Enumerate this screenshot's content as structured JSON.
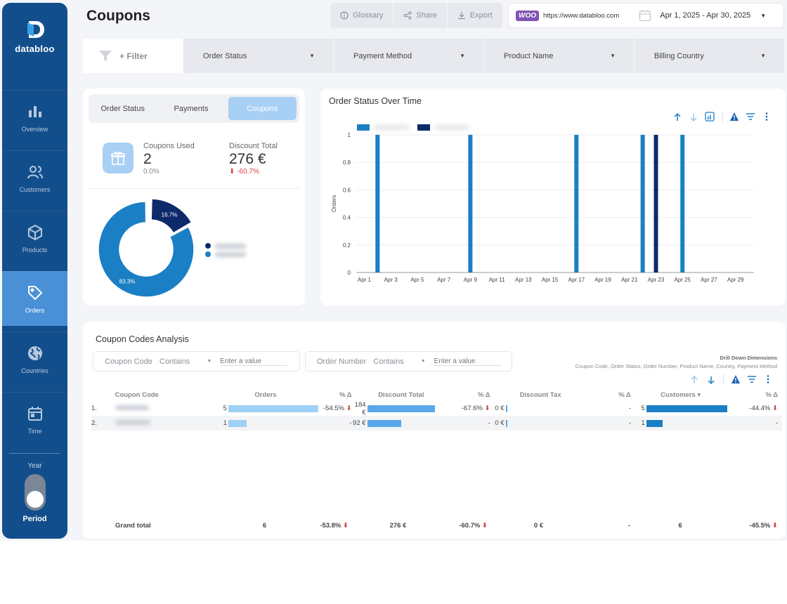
{
  "brand": {
    "name": "databloo"
  },
  "sidebar": {
    "items": [
      {
        "label": "Overview",
        "icon": "bar-chart-icon"
      },
      {
        "label": "Customers",
        "icon": "users-icon"
      },
      {
        "label": "Products",
        "icon": "box-icon"
      },
      {
        "label": "Orders",
        "icon": "tag-icon",
        "active": true
      },
      {
        "label": "Countries",
        "icon": "globe-icon"
      },
      {
        "label": "Time",
        "icon": "calendar-icon"
      }
    ],
    "toggle": {
      "top": "Year",
      "bottom": "Period"
    }
  },
  "header": {
    "title": "Coupons",
    "glossary": "Glossary",
    "share": "Share",
    "export": "Export",
    "woo_label": "WOO",
    "url": "https://www.databloo.com",
    "date_range": "Apr 1, 2025 - Apr 30, 2025"
  },
  "filters": {
    "add": "+ Filter",
    "controls": [
      "Order Status",
      "Payment Method",
      "Product Name",
      "Billing Country"
    ]
  },
  "summary": {
    "tabs": [
      "Order Status",
      "Payments",
      "Coupons"
    ],
    "active_tab": "Coupons",
    "coupons_used": {
      "label": "Coupons Used",
      "value": "2",
      "sub": "0.0%"
    },
    "discount_total": {
      "label": "Discount Total",
      "value": "276 €",
      "change": "-60.7%"
    },
    "donut": {
      "slices": [
        {
          "value": 16.7,
          "label": "16.7%",
          "color": "#0d2a6b"
        },
        {
          "value": 83.3,
          "label": "83.3%",
          "color": "#1a7fc4"
        }
      ]
    }
  },
  "chart_data": {
    "type": "bar",
    "title": "Order Status Over Time",
    "ylabel": "Orders",
    "ylim": [
      0,
      1
    ],
    "yticks": [
      "0",
      "0.2",
      "0.4",
      "0.6",
      "0.8",
      "1"
    ],
    "xticks": [
      "Apr 1",
      "Apr 3",
      "Apr 5",
      "Apr 7",
      "Apr 9",
      "Apr 11",
      "Apr 13",
      "Apr 15",
      "Apr 17",
      "Apr 19",
      "Apr 21",
      "Apr 23",
      "Apr 25",
      "Apr 27",
      "Apr 29"
    ],
    "series": [
      {
        "color": "#1a7fc4",
        "points": [
          {
            "x": "Apr 2",
            "y": 1
          },
          {
            "x": "Apr 9",
            "y": 1
          },
          {
            "x": "Apr 17",
            "y": 1
          },
          {
            "x": "Apr 22",
            "y": 1
          },
          {
            "x": "Apr 25",
            "y": 1
          }
        ]
      },
      {
        "color": "#0d2a6b",
        "points": [
          {
            "x": "Apr 23",
            "y": 1
          }
        ]
      }
    ]
  },
  "table": {
    "title": "Coupon Codes Analysis",
    "search1": {
      "label": "Coupon Code",
      "mode": "Contains",
      "placeholder": "Enter a value"
    },
    "search2": {
      "label": "Order Number",
      "mode": "Contains",
      "placeholder": "Enter a value"
    },
    "drill": {
      "title": "Drill Down Dimensions",
      "items": "Coupon Code, Order Status, Order Number, Product Name, Country, Payment Method"
    },
    "columns": [
      "Coupon Code",
      "Orders",
      "% Δ",
      "Discount Total",
      "% Δ",
      "Discount Tax",
      "% Δ",
      "Customers ▾",
      "% Δ"
    ],
    "rows": [
      {
        "idx": "1.",
        "orders": "5",
        "orders_frac": 1,
        "o_delta": "-54.5%",
        "o_neg": true,
        "disc": "184 €",
        "disc_frac": 1,
        "d_delta": "-67.6%",
        "d_neg": true,
        "tax": "0 €",
        "t_delta": "-",
        "cust": "5",
        "cust_frac": 1,
        "c_delta": "-44.4%",
        "c_neg": true
      },
      {
        "idx": "2.",
        "orders": "1",
        "orders_frac": 0.2,
        "o_delta": "-",
        "o_neg": false,
        "disc": "92 €",
        "disc_frac": 0.5,
        "d_delta": "-",
        "d_neg": false,
        "tax": "0 €",
        "t_delta": "-",
        "cust": "1",
        "cust_frac": 0.2,
        "c_delta": "-",
        "c_neg": false
      }
    ],
    "grand_total": {
      "label": "Grand total",
      "orders": "6",
      "o_delta": "-53.8%",
      "disc": "276 €",
      "d_delta": "-60.7%",
      "tax": "0 €",
      "t_delta": "-",
      "cust": "6",
      "c_delta": "-45.5%"
    }
  },
  "colors": {
    "sidebar": "#134e8c",
    "accent": "#1a7fc4",
    "dark": "#0d2a6b",
    "negative": "#d9413d"
  }
}
